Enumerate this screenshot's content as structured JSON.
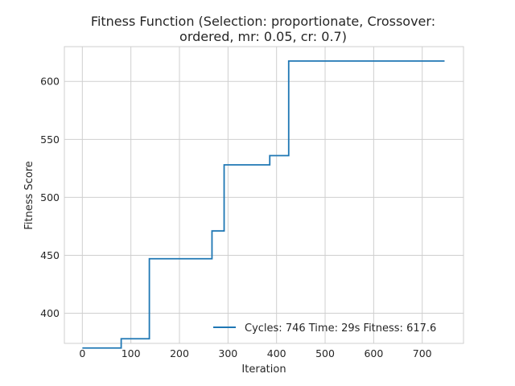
{
  "chart_data": {
    "type": "line",
    "title_lines": [
      "Fitness Function (Selection: proportionate, Crossover:",
      "ordered, mr: 0.05, cr: 0.7)"
    ],
    "xlabel": "Iteration",
    "ylabel": "Fitness Score",
    "xlim": [
      -37,
      785
    ],
    "ylim": [
      374,
      630
    ],
    "xticks": [
      0,
      100,
      200,
      300,
      400,
      500,
      600,
      700
    ],
    "yticks": [
      400,
      450,
      500,
      550,
      600
    ],
    "grid": true,
    "legend_position": "bottom-right",
    "series": [
      {
        "name": "Cycles: 746 Time: 29s Fitness: 617.6",
        "color": "#1f77b4",
        "step": true,
        "points": [
          [
            0,
            370
          ],
          [
            80,
            370
          ],
          [
            80,
            378
          ],
          [
            138,
            378
          ],
          [
            138,
            447
          ],
          [
            267,
            447
          ],
          [
            267,
            471
          ],
          [
            292,
            471
          ],
          [
            292,
            528
          ],
          [
            386,
            528
          ],
          [
            386,
            536
          ],
          [
            425,
            536
          ],
          [
            425,
            617.6
          ],
          [
            746,
            617.6
          ]
        ]
      }
    ]
  }
}
